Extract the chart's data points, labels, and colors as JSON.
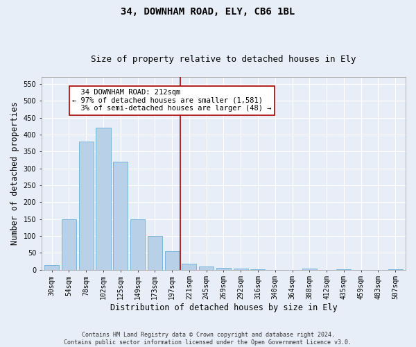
{
  "title1": "34, DOWNHAM ROAD, ELY, CB6 1BL",
  "title2": "Size of property relative to detached houses in Ely",
  "xlabel": "Distribution of detached houses by size in Ely",
  "ylabel": "Number of detached properties",
  "footnote": "Contains HM Land Registry data © Crown copyright and database right 2024.\nContains public sector information licensed under the Open Government Licence v3.0.",
  "categories": [
    "30sqm",
    "54sqm",
    "78sqm",
    "102sqm",
    "125sqm",
    "149sqm",
    "173sqm",
    "197sqm",
    "221sqm",
    "245sqm",
    "269sqm",
    "292sqm",
    "316sqm",
    "340sqm",
    "364sqm",
    "388sqm",
    "412sqm",
    "435sqm",
    "459sqm",
    "483sqm",
    "507sqm"
  ],
  "values": [
    13,
    150,
    380,
    420,
    320,
    150,
    100,
    55,
    18,
    10,
    6,
    4,
    1,
    0,
    0,
    3,
    0,
    1,
    0,
    0,
    1
  ],
  "bar_color": "#b8d0e8",
  "bar_edge_color": "#6aaed6",
  "vline_x": 7.5,
  "vline_color": "#aa0000",
  "annotation_text": "  34 DOWNHAM ROAD: 212sqm\n← 97% of detached houses are smaller (1,581)\n  3% of semi-detached houses are larger (48) →",
  "annotation_box_color": "#ffffff",
  "annotation_box_edge": "#aa0000",
  "ylim": [
    0,
    570
  ],
  "yticks": [
    0,
    50,
    100,
    150,
    200,
    250,
    300,
    350,
    400,
    450,
    500,
    550
  ],
  "background_color": "#e8eef8",
  "grid_color": "#ffffff",
  "title_fontsize": 10,
  "subtitle_fontsize": 9,
  "axis_label_fontsize": 8.5,
  "tick_fontsize": 7,
  "annotation_fontsize": 7.5,
  "footnote_fontsize": 6
}
